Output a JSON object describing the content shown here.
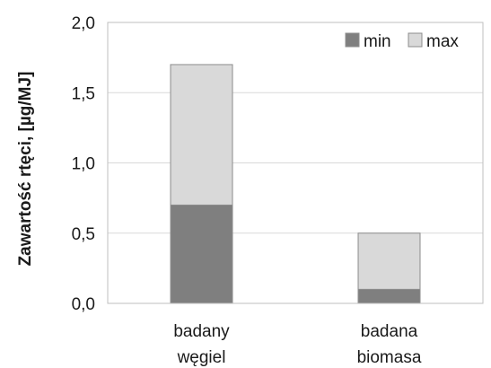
{
  "chart_data": {
    "type": "bar",
    "stacked": true,
    "categories": [
      [
        "badany",
        "węgiel"
      ],
      [
        "badana",
        "biomasa"
      ]
    ],
    "series": [
      {
        "name": "min",
        "color": "#7f7f7f",
        "values": [
          0.7,
          0.1
        ]
      },
      {
        "name": "max",
        "color": "#d9d9d9",
        "values": [
          1.0,
          0.4
        ]
      }
    ],
    "title": "",
    "xlabel": "",
    "ylabel": "Zawartość rtęci,  [µg/MJ]",
    "ylim": [
      0,
      2.0
    ],
    "yticks": [
      0.0,
      0.5,
      1.0,
      1.5,
      2.0
    ],
    "ytick_labels": [
      "0,0",
      "0,5",
      "1,0",
      "1,5",
      "2,0"
    ],
    "grid": true,
    "legend_position": "top-right",
    "bar_edge_color": "#8c8c8c"
  }
}
